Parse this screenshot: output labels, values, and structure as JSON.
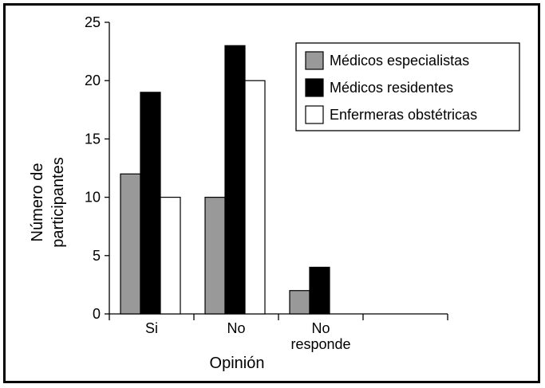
{
  "chart_data": {
    "type": "bar",
    "title": "",
    "xlabel": "Opinión",
    "ylabel": [
      "Número de",
      "participantes"
    ],
    "ylim": [
      0,
      25
    ],
    "yticks": [
      0,
      5,
      10,
      15,
      20,
      25
    ],
    "categories": [
      [
        "Si"
      ],
      [
        "No"
      ],
      [
        "No",
        "responde"
      ],
      [
        ""
      ]
    ],
    "series": [
      {
        "name": "Médicos especialistas",
        "color": "#999999",
        "values": [
          12,
          10,
          2,
          null
        ]
      },
      {
        "name": "Médicos residentes",
        "color": "#000000",
        "values": [
          19,
          23,
          4,
          null
        ]
      },
      {
        "name": "Enfermeras obstétricas",
        "color": "#ffffff",
        "values": [
          10,
          20,
          0,
          null
        ]
      }
    ],
    "grid": false,
    "legend_position": "top-right"
  }
}
